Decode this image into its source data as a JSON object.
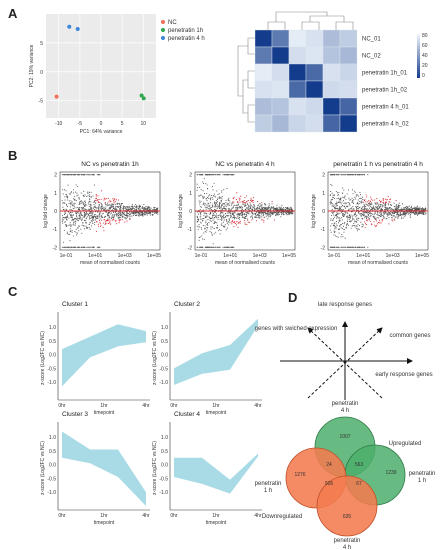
{
  "panels": {
    "A": "A",
    "B": "B",
    "C": "C",
    "D": "D"
  },
  "pca": {
    "xlabel": "PC1: 64% variance",
    "ylabel": "PC2: 19% variance",
    "xticks": [
      "-10",
      "-5",
      "0",
      "5",
      "10"
    ],
    "yticks": [
      "5",
      "0",
      "-5"
    ],
    "legend": [
      {
        "label": "NC",
        "color": "#f0705a"
      },
      {
        "label": "penetratin 1h",
        "color": "#2fa84f"
      },
      {
        "label": "penetratin 4 h",
        "color": "#3f86d8"
      }
    ],
    "points": [
      {
        "x": -10.5,
        "y": -4.3,
        "color": "#f0705a"
      },
      {
        "x": -7.5,
        "y": 7.8,
        "color": "#3f86d8"
      },
      {
        "x": -5.5,
        "y": 7.4,
        "color": "#3f86d8"
      },
      {
        "x": 9.6,
        "y": -4.1,
        "color": "#2fa84f"
      },
      {
        "x": 10.1,
        "y": -4.6,
        "color": "#2fa84f"
      }
    ]
  },
  "heatmap": {
    "rows": [
      "NC_01",
      "NC_02",
      "penetratin 1h_01",
      "penetratin 1h_02",
      "penetratin 4 h_01",
      "penetratin 4 h_02"
    ],
    "colorbar": [
      "80",
      "60",
      "40",
      "20",
      "0"
    ],
    "values": [
      [
        0,
        30,
        85,
        80,
        62,
        70
      ],
      [
        30,
        0,
        78,
        82,
        66,
        60
      ],
      [
        85,
        78,
        0,
        22,
        80,
        74
      ],
      [
        80,
        82,
        22,
        0,
        76,
        78
      ],
      [
        62,
        66,
        80,
        76,
        0,
        20
      ],
      [
        70,
        60,
        74,
        78,
        20,
        0
      ]
    ]
  },
  "ma": {
    "ylabel": "log fold change",
    "xlabel": "mean of normalised counts",
    "yticks": [
      "2",
      "1",
      "0",
      "-1",
      "-2"
    ],
    "xticks": [
      "1e-01",
      "1e+01",
      "1e+03",
      "1e+05"
    ],
    "plots": [
      {
        "title": "NC vs penetratin 1h"
      },
      {
        "title": "NC vs penetratin 4 h"
      },
      {
        "title": "penetratin 1 h vs penetratin 4 h"
      }
    ]
  },
  "clusters": {
    "ylabel": "z-score (Log2FC vs NC)",
    "xlabel": "timepoint",
    "xticks": [
      "0hr",
      "1hr",
      "4hr"
    ],
    "yticks": [
      "1.0",
      "0.5",
      "0.0",
      "-0.5",
      "-1.0"
    ],
    "items": [
      {
        "title": "Cluster 1",
        "upper": [
          0.2,
          0.65,
          1.1,
          0.85
        ],
        "lower": [
          -1.15,
          -0.1,
          0.3,
          0.45
        ]
      },
      {
        "title": "Cluster 2",
        "upper": [
          -0.5,
          0.05,
          0.35,
          1.3
        ],
        "lower": [
          -1.1,
          -0.7,
          -0.55,
          1.05
        ]
      },
      {
        "title": "Cluster 3",
        "upper": [
          1.2,
          0.55,
          0.55,
          -1.0
        ],
        "lower": [
          0.25,
          0.05,
          -0.45,
          -1.5
        ]
      },
      {
        "title": "Cluster 4",
        "upper": [
          0.25,
          0.25,
          -0.55,
          0.4
        ],
        "lower": [
          -0.45,
          -0.7,
          -1.05,
          0.3
        ]
      }
    ]
  },
  "arrows": {
    "late": "late response genes",
    "switched": "genes with swiched expression",
    "common": "common genes",
    "early": "early response genes"
  },
  "venn": {
    "top_label": [
      "penetratin",
      "4 h"
    ],
    "left_label": [
      "penetratin",
      "1 h"
    ],
    "right_label": [
      "penetratin",
      "1 h"
    ],
    "bottom_label": [
      "penetratin",
      "4 h"
    ],
    "upregulated": "Upregulated",
    "downregulated": "Downregulated",
    "numbers": {
      "top": "1007",
      "right": "1239",
      "center": "563",
      "middle": "24",
      "left": "1276",
      "lower_center": "926",
      "lower_right": "67",
      "bottom": "635"
    },
    "colors": {
      "green": "#4caf6c",
      "orange": "#f47b4f"
    }
  }
}
